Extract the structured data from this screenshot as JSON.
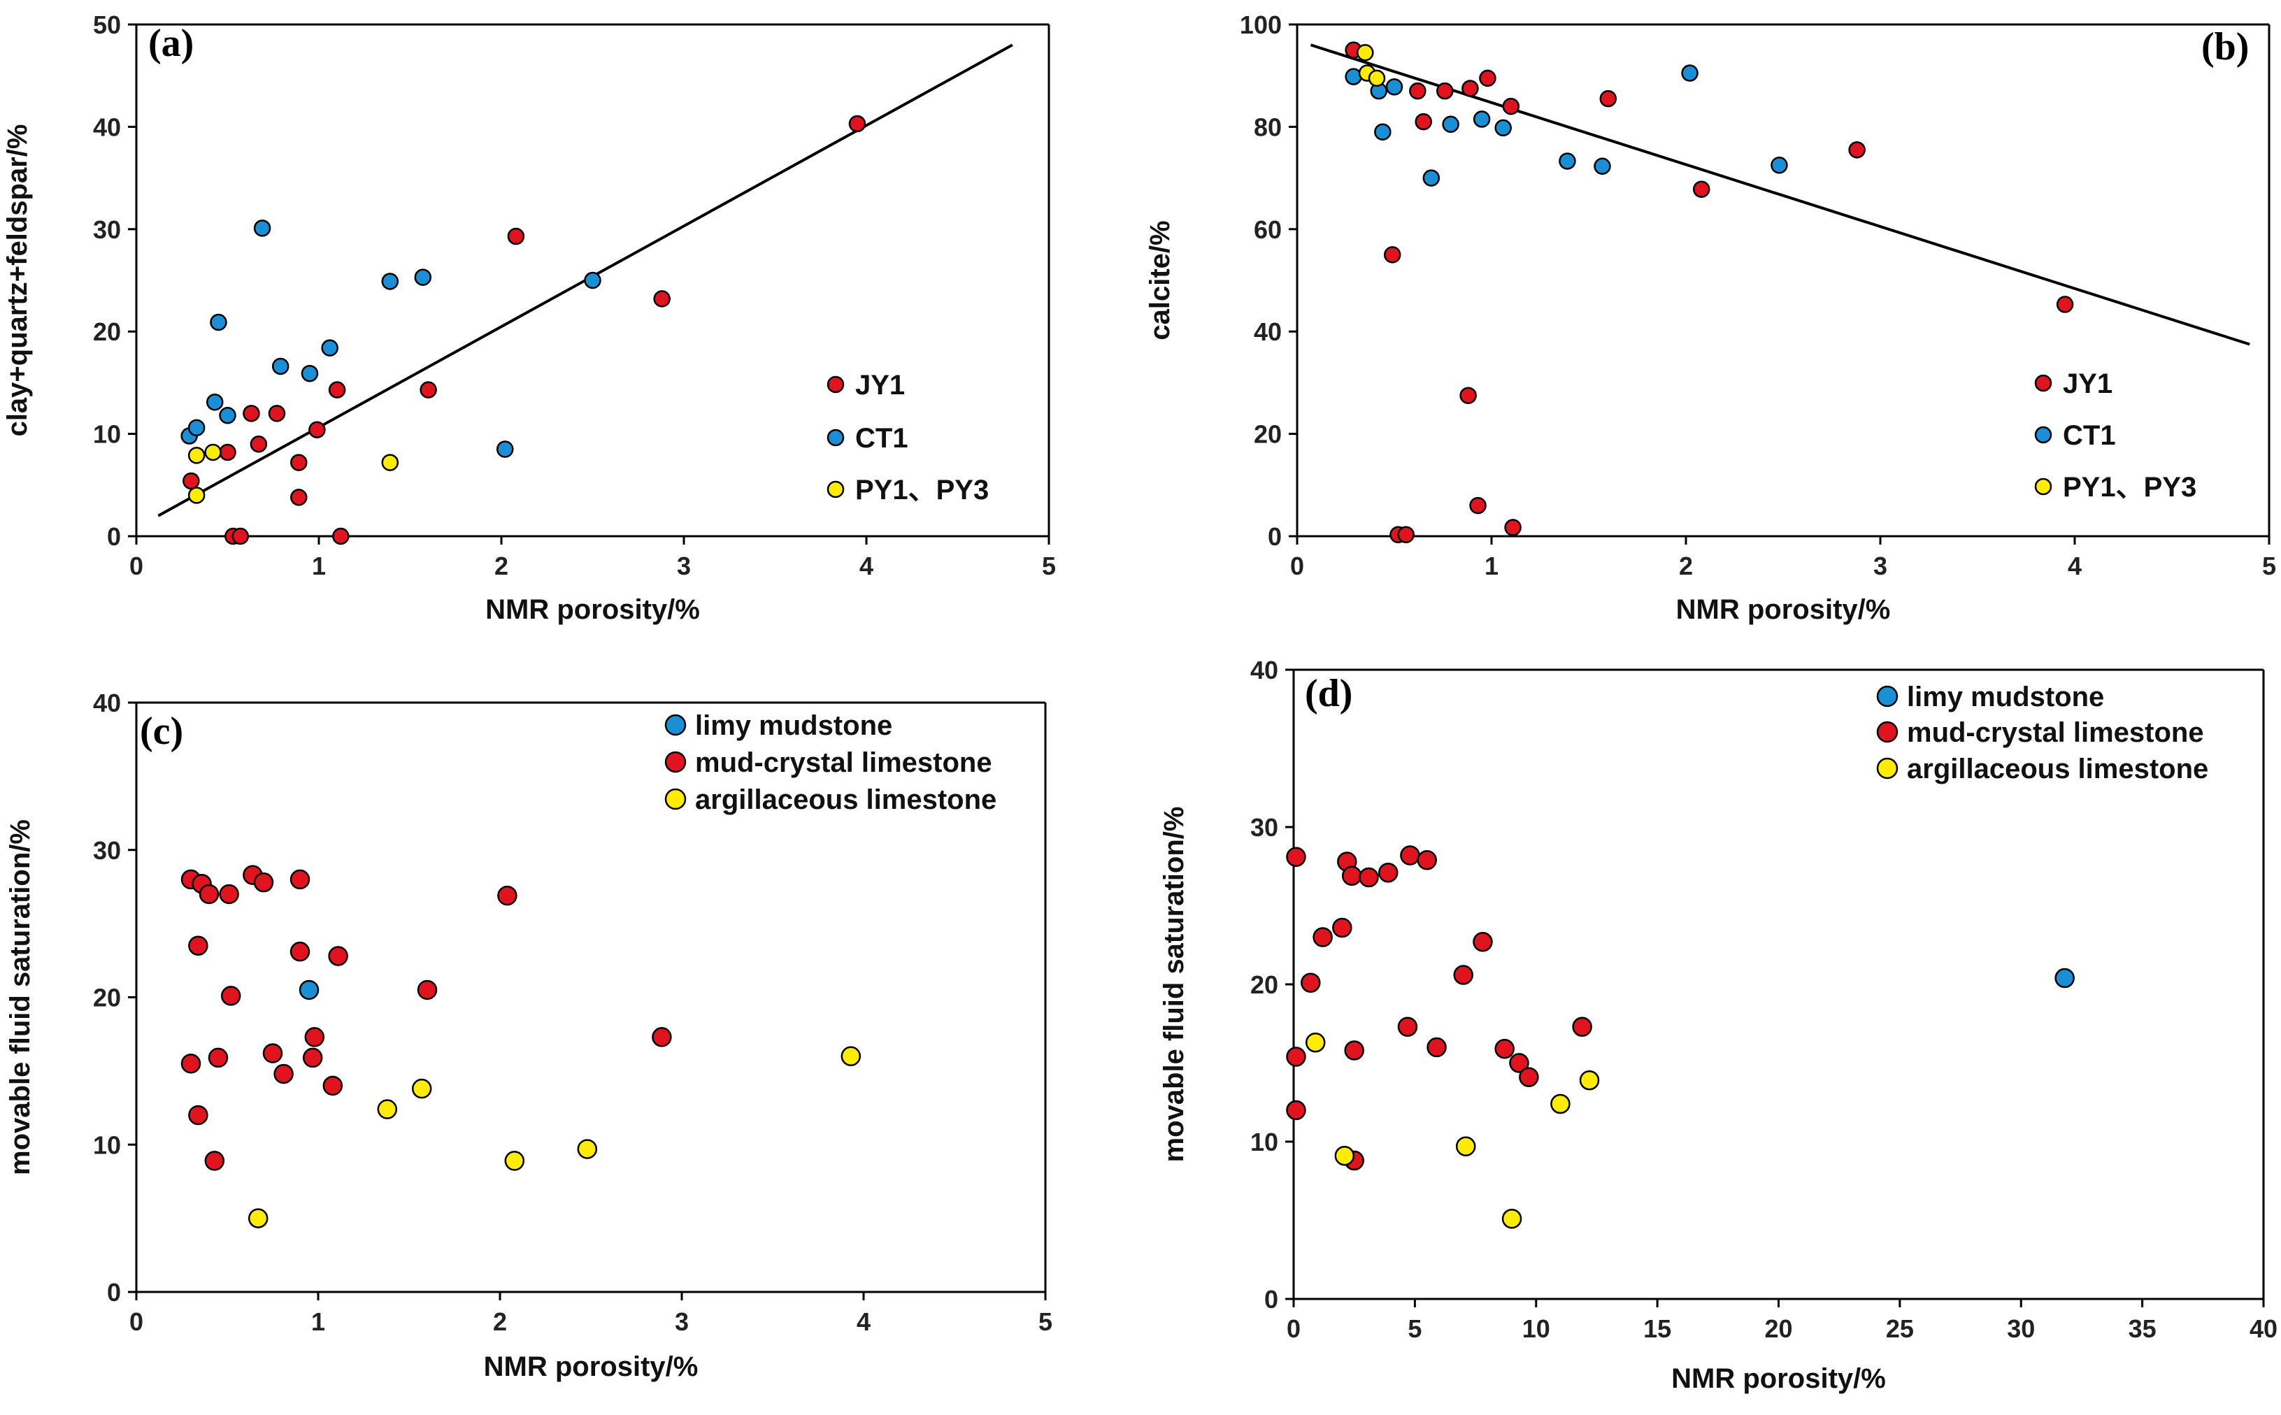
{
  "colors": {
    "JY1": "#e0141e",
    "CT1": "#1a8fd6",
    "PY": "#ffec00",
    "limy": "#1a8fd6",
    "mud": "#e0141e",
    "arg": "#ffec00"
  },
  "chart_data": [
    {
      "id": "a",
      "type": "scatter",
      "panel_label": "(a)",
      "xlabel": "NMR porosity/%",
      "ylabel": "clay+quartz+feldspar/%",
      "xlim": [
        0,
        5
      ],
      "ylim": [
        0,
        50
      ],
      "xticks": [
        0,
        1,
        2,
        3,
        4,
        5
      ],
      "yticks": [
        0,
        10,
        20,
        30,
        40,
        50
      ],
      "legend_position": "right",
      "trendline": [
        [
          0.12,
          2
        ],
        [
          4.8,
          48
        ]
      ],
      "series": [
        {
          "name": "JY1",
          "color": "#e0141e",
          "points": [
            [
              0.3,
              5.4
            ],
            [
              0.5,
              8.2
            ],
            [
              0.53,
              0
            ],
            [
              0.57,
              0
            ],
            [
              0.63,
              12
            ],
            [
              0.67,
              9
            ],
            [
              0.77,
              12
            ],
            [
              0.89,
              7.2
            ],
            [
              0.89,
              3.8
            ],
            [
              0.99,
              10.4
            ],
            [
              1.1,
              14.3
            ],
            [
              1.12,
              0
            ],
            [
              1.6,
              14.3
            ],
            [
              2.08,
              29.3
            ],
            [
              2.88,
              23.2
            ],
            [
              3.95,
              40.3
            ]
          ]
        },
        {
          "name": "CT1",
          "color": "#1a8fd6",
          "points": [
            [
              0.29,
              9.8
            ],
            [
              0.33,
              10.6
            ],
            [
              0.43,
              13.1
            ],
            [
              0.45,
              20.9
            ],
            [
              0.5,
              11.8
            ],
            [
              0.69,
              30.1
            ],
            [
              0.79,
              16.6
            ],
            [
              0.95,
              15.9
            ],
            [
              1.06,
              18.4
            ],
            [
              1.39,
              24.9
            ],
            [
              1.57,
              25.3
            ],
            [
              2.02,
              8.5
            ],
            [
              2.5,
              25
            ]
          ]
        },
        {
          "name": "PY1、PY3",
          "color": "#ffec00",
          "points": [
            [
              0.33,
              7.9
            ],
            [
              0.33,
              4
            ],
            [
              0.42,
              8.2
            ],
            [
              1.39,
              7.2
            ]
          ]
        }
      ]
    },
    {
      "id": "b",
      "type": "scatter",
      "panel_label": "(b)",
      "xlabel": "NMR porosity/%",
      "ylabel": "calcite/%",
      "xlim": [
        0,
        5
      ],
      "ylim": [
        0,
        100
      ],
      "xticks": [
        0,
        1,
        2,
        3,
        4,
        5
      ],
      "yticks": [
        0,
        20,
        40,
        60,
        80,
        100
      ],
      "legend_position": "right",
      "trendline": [
        [
          0.07,
          96
        ],
        [
          4.9,
          37.5
        ]
      ],
      "series": [
        {
          "name": "JY1",
          "color": "#e0141e",
          "points": [
            [
              0.29,
              95
            ],
            [
              0.62,
              87
            ],
            [
              0.65,
              81
            ],
            [
              0.76,
              87
            ],
            [
              0.89,
              87.5
            ],
            [
              0.98,
              89.5
            ],
            [
              1.1,
              84
            ],
            [
              1.6,
              85.5
            ],
            [
              0.49,
              55
            ],
            [
              0.88,
              27.5
            ],
            [
              0.93,
              6
            ],
            [
              0.52,
              0.3
            ],
            [
              0.56,
              0.3
            ],
            [
              1.11,
              1.7
            ],
            [
              2.08,
              67.8
            ],
            [
              2.88,
              75.5
            ],
            [
              3.95,
              45.3
            ]
          ]
        },
        {
          "name": "CT1",
          "color": "#1a8fd6",
          "points": [
            [
              0.29,
              89.8
            ],
            [
              0.42,
              87
            ],
            [
              0.44,
              79
            ],
            [
              0.5,
              87.8
            ],
            [
              0.69,
              70
            ],
            [
              0.79,
              80.5
            ],
            [
              0.95,
              81.5
            ],
            [
              1.06,
              79.8
            ],
            [
              1.39,
              73.3
            ],
            [
              1.57,
              72.3
            ],
            [
              2.02,
              90.5
            ],
            [
              2.48,
              72.5
            ]
          ]
        },
        {
          "name": "PY1、PY3",
          "color": "#ffec00",
          "points": [
            [
              0.35,
              94.5
            ],
            [
              0.36,
              90.5
            ],
            [
              0.41,
              89.5
            ]
          ]
        }
      ]
    },
    {
      "id": "c",
      "type": "scatter",
      "panel_label": "(c)",
      "xlabel": "NMR porosity/%",
      "ylabel": "movable fluid saturation/%",
      "xlim": [
        0,
        5
      ],
      "ylim": [
        0,
        40
      ],
      "xticks": [
        0,
        1,
        2,
        3,
        4,
        5
      ],
      "yticks": [
        0,
        10,
        20,
        30,
        40
      ],
      "legend_position": "top-right",
      "trendline": null,
      "series": [
        {
          "name": "limy mudstone",
          "color": "#1a8fd6",
          "points": [
            [
              0.95,
              20.5
            ]
          ]
        },
        {
          "name": "mud-crystal limestone",
          "color": "#e0141e",
          "points": [
            [
              0.3,
              28
            ],
            [
              0.36,
              27.7
            ],
            [
              0.4,
              27
            ],
            [
              0.51,
              27
            ],
            [
              0.64,
              28.3
            ],
            [
              0.7,
              27.8
            ],
            [
              0.9,
              28
            ],
            [
              0.34,
              23.5
            ],
            [
              0.9,
              23.1
            ],
            [
              1.11,
              22.8
            ],
            [
              0.52,
              20.1
            ],
            [
              2.04,
              26.9
            ],
            [
              1.6,
              20.5
            ],
            [
              0.45,
              15.9
            ],
            [
              0.3,
              15.5
            ],
            [
              0.75,
              16.2
            ],
            [
              0.81,
              14.8
            ],
            [
              0.97,
              15.9
            ],
            [
              0.98,
              17.3
            ],
            [
              1.08,
              14
            ],
            [
              2.89,
              17.3
            ],
            [
              0.34,
              12
            ],
            [
              0.43,
              8.9
            ]
          ]
        },
        {
          "name": "argillaceous limestone",
          "color": "#ffec00",
          "points": [
            [
              0.67,
              5
            ],
            [
              1.38,
              12.4
            ],
            [
              1.57,
              13.8
            ],
            [
              2.08,
              8.9
            ],
            [
              2.48,
              9.7
            ],
            [
              3.93,
              16
            ]
          ]
        }
      ]
    },
    {
      "id": "d",
      "type": "scatter",
      "panel_label": "(d)",
      "xlabel": "NMR porosity/%",
      "ylabel": "movable fluid saturation/%",
      "xlim": [
        0,
        40
      ],
      "ylim": [
        0,
        40
      ],
      "xticks": [
        0,
        5,
        10,
        15,
        20,
        25,
        30,
        35,
        40
      ],
      "yticks": [
        0,
        10,
        20,
        30,
        40
      ],
      "legend_position": "top-right",
      "trendline": null,
      "series": [
        {
          "name": "limy mudstone",
          "color": "#1a8fd6",
          "points": [
            [
              31.8,
              20.4
            ]
          ]
        },
        {
          "name": "mud-crystal limestone",
          "color": "#e0141e",
          "points": [
            [
              0.1,
              28.1
            ],
            [
              2.2,
              27.8
            ],
            [
              2.4,
              26.9
            ],
            [
              3.1,
              26.8
            ],
            [
              3.9,
              27.1
            ],
            [
              4.8,
              28.2
            ],
            [
              5.5,
              27.9
            ],
            [
              0.7,
              20.1
            ],
            [
              1.2,
              23
            ],
            [
              2.0,
              23.6
            ],
            [
              0.1,
              15.4
            ],
            [
              0.1,
              12
            ],
            [
              2.5,
              15.8
            ],
            [
              4.7,
              17.3
            ],
            [
              5.9,
              16
            ],
            [
              7.0,
              20.6
            ],
            [
              7.8,
              22.7
            ],
            [
              8.7,
              15.9
            ],
            [
              9.3,
              15
            ],
            [
              9.7,
              14.1
            ],
            [
              11.9,
              17.3
            ],
            [
              2.5,
              8.8
            ]
          ]
        },
        {
          "name": "argillaceous limestone",
          "color": "#ffec00",
          "points": [
            [
              0.9,
              16.3
            ],
            [
              2.1,
              9.1
            ],
            [
              7.1,
              9.7
            ],
            [
              9.0,
              5.1
            ],
            [
              11.0,
              12.4
            ],
            [
              12.2,
              13.9
            ]
          ]
        }
      ]
    }
  ]
}
